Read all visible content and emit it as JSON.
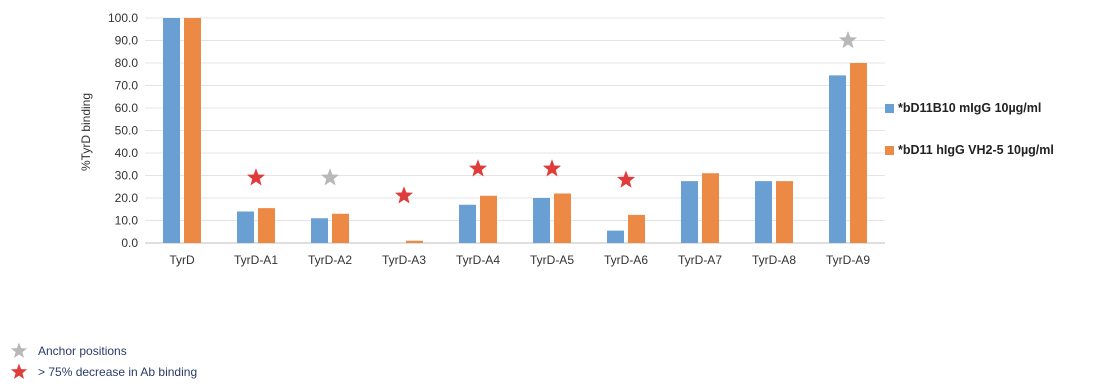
{
  "chart_data": {
    "type": "bar",
    "categories": [
      "TyrD",
      "TyrD-A1",
      "TyrD-A2",
      "TyrD-A3",
      "TyrD-A4",
      "TyrD-A5",
      "TyrD-A6",
      "TyrD-A7",
      "TyrD-A8",
      "TyrD-A9"
    ],
    "series": [
      {
        "name": "*bD11B10 mIgG 10µg/ml",
        "color": "#6a9fd4",
        "values": [
          100.0,
          14.0,
          11.0,
          0.0,
          17.0,
          20.0,
          5.5,
          27.5,
          27.5,
          74.5
        ]
      },
      {
        "name": "*bD11 hIgG VH2-5 10µg/ml",
        "color": "#ec8a45",
        "values": [
          100.0,
          15.5,
          13.0,
          1.0,
          21.0,
          22.0,
          12.5,
          31.0,
          27.5,
          80.0
        ]
      }
    ],
    "ylabel": "%TyrD binding",
    "ylim": [
      0,
      100
    ],
    "yticks": [
      "0.0",
      "10.0",
      "20.0",
      "30.0",
      "40.0",
      "50.0",
      "60.0",
      "70.0",
      "80.0",
      "90.0",
      "100.0"
    ],
    "grid": true,
    "legend_position": "right",
    "markers": [
      {
        "category": "TyrD-A1",
        "type": "decrease",
        "y": 29
      },
      {
        "category": "TyrD-A2",
        "type": "anchor",
        "y": 29
      },
      {
        "category": "TyrD-A3",
        "type": "decrease",
        "y": 21
      },
      {
        "category": "TyrD-A4",
        "type": "decrease",
        "y": 33
      },
      {
        "category": "TyrD-A5",
        "type": "decrease",
        "y": 33
      },
      {
        "category": "TyrD-A6",
        "type": "decrease",
        "y": 28
      },
      {
        "category": "TyrD-A9",
        "type": "anchor",
        "y": 90
      }
    ]
  },
  "key": {
    "anchor": {
      "label": "Anchor positions",
      "color": "#b8b8b8"
    },
    "decrease": {
      "label": "> 75% decrease in Ab binding",
      "color": "#e03c3c"
    }
  }
}
